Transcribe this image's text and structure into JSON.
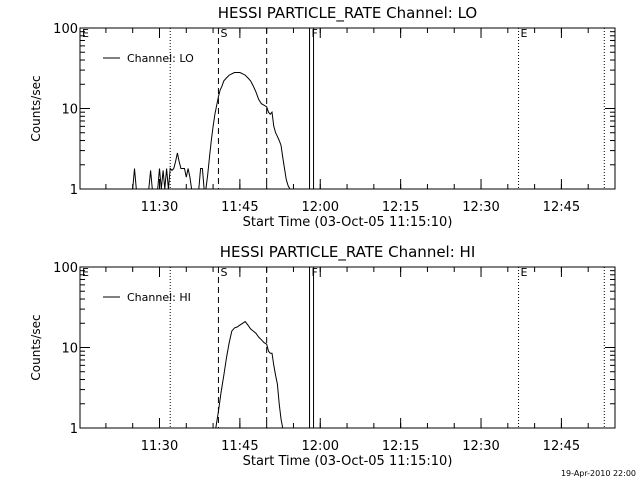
{
  "chart_data": [
    {
      "type": "line",
      "title": "HESSI PARTICLE_RATE Channel: LO",
      "xlabel": "Start Time (03-Oct-05 11:15:10)",
      "ylabel": "Counts/sec",
      "yscale": "log",
      "ylim": [
        1,
        100
      ],
      "y_ticks": [
        1,
        10,
        100
      ],
      "y_tick_labels": [
        "1",
        "10",
        "100"
      ],
      "xlim": [
        "11:15:10",
        "12:55:00"
      ],
      "x_ticks": [
        "11:30",
        "11:45",
        "12:00",
        "12:15",
        "12:30",
        "12:45"
      ],
      "legend": {
        "position": "top-left",
        "entries": [
          "Channel: LO"
        ]
      },
      "markers": [
        {
          "label": "E",
          "time": "11:15:10",
          "style": "dotted"
        },
        {
          "label": "",
          "time": "11:32",
          "style": "dotted"
        },
        {
          "label": "S",
          "time": "11:41",
          "style": "dashed"
        },
        {
          "label": "",
          "time": "11:50",
          "style": "dashed"
        },
        {
          "label": "F",
          "time": "11:58",
          "style": "solid"
        },
        {
          "label": "E",
          "time": "12:37",
          "style": "dotted"
        },
        {
          "label": "",
          "time": "12:53",
          "style": "dotted"
        }
      ],
      "series": [
        {
          "name": "Channel: LO",
          "x": [
            "11:25:00",
            "11:25:20",
            "11:25:40",
            "11:28:00",
            "11:28:20",
            "11:28:40",
            "11:29:40",
            "11:30:00",
            "11:30:20",
            "11:30:40",
            "11:31:00",
            "11:31:20",
            "11:31:40",
            "11:32:00",
            "11:32:20",
            "11:32:40",
            "11:33:00",
            "11:33:20",
            "11:33:40",
            "11:34:00",
            "11:34:20",
            "11:34:40",
            "11:35:00",
            "11:35:20",
            "11:35:40",
            "11:36:00",
            "11:36:20",
            "11:36:40",
            "11:37:00",
            "11:37:20",
            "11:37:40",
            "11:38:00",
            "11:38:20",
            "11:38:40",
            "11:39:00",
            "11:39:20",
            "11:39:40",
            "11:40:00",
            "11:40:20",
            "11:40:40",
            "11:41:00",
            "11:41:20",
            "11:41:40",
            "11:42:00",
            "11:42:30",
            "11:43:00",
            "11:43:30",
            "11:44:00",
            "11:44:30",
            "11:45:00",
            "11:45:30",
            "11:46:00",
            "11:46:30",
            "11:47:00",
            "11:47:30",
            "11:48:00",
            "11:48:30",
            "11:49:00",
            "11:49:30",
            "11:50:00",
            "11:50:20",
            "11:50:40",
            "11:51:00",
            "11:51:20",
            "11:51:40",
            "11:52:00",
            "11:52:20",
            "11:52:40",
            "11:53:00",
            "11:53:20",
            "11:53:40",
            "11:54:00",
            "11:54:20",
            "11:54:40"
          ],
          "values": [
            1,
            1.8,
            1,
            1,
            1.7,
            1,
            1,
            1.8,
            1,
            1.7,
            1,
            1.8,
            1,
            1.8,
            1.7,
            1.8,
            2.2,
            2.8,
            2.2,
            1.8,
            1.8,
            1.8,
            1.4,
            1.8,
            1.4,
            1,
            1,
            1,
            1,
            1,
            1.8,
            1.8,
            1,
            1,
            1.5,
            2.5,
            4,
            6,
            8.5,
            11,
            14,
            17,
            19,
            22,
            24,
            26,
            27,
            28,
            28,
            28,
            27,
            26,
            24,
            22,
            19,
            16,
            13,
            11.5,
            11,
            10.5,
            9,
            8.5,
            9,
            6,
            5,
            4.5,
            4,
            3.5,
            2.5,
            1.8,
            1.3,
            1.1,
            1,
            1
          ]
        }
      ]
    },
    {
      "type": "line",
      "title": "HESSI PARTICLE_RATE Channel: HI",
      "xlabel": "Start Time (03-Oct-05 11:15:10)",
      "ylabel": "Counts/sec",
      "yscale": "log",
      "ylim": [
        1,
        100
      ],
      "y_ticks": [
        1,
        10,
        100
      ],
      "y_tick_labels": [
        "1",
        "10",
        "100"
      ],
      "xlim": [
        "11:15:10",
        "12:55:00"
      ],
      "x_ticks": [
        "11:30",
        "11:45",
        "12:00",
        "12:15",
        "12:30",
        "12:45"
      ],
      "legend": {
        "position": "top-left",
        "entries": [
          "Channel: HI"
        ]
      },
      "markers": [
        {
          "label": "E",
          "time": "11:15:10",
          "style": "dotted"
        },
        {
          "label": "",
          "time": "11:32",
          "style": "dotted"
        },
        {
          "label": "S",
          "time": "11:41",
          "style": "dashed"
        },
        {
          "label": "",
          "time": "11:50",
          "style": "dashed"
        },
        {
          "label": "F",
          "time": "11:58",
          "style": "solid"
        },
        {
          "label": "E",
          "time": "12:37",
          "style": "dotted"
        },
        {
          "label": "",
          "time": "12:53",
          "style": "dotted"
        }
      ],
      "series": [
        {
          "name": "Channel: HI",
          "x": [
            "11:40:30",
            "11:41:00",
            "11:41:30",
            "11:42:00",
            "11:42:30",
            "11:43:00",
            "11:43:30",
            "11:44:00",
            "11:44:30",
            "11:45:00",
            "11:45:30",
            "11:46:00",
            "11:46:30",
            "11:47:00",
            "11:47:30",
            "11:48:00",
            "11:48:30",
            "11:49:00",
            "11:49:30",
            "11:50:00",
            "11:50:20",
            "11:50:40",
            "11:51:00",
            "11:51:20",
            "11:51:40",
            "11:52:00",
            "11:52:20",
            "11:52:40",
            "11:53:00"
          ],
          "values": [
            1,
            1.6,
            2.8,
            4.5,
            7.5,
            11.5,
            16,
            17.5,
            18,
            19,
            20,
            21,
            19,
            17,
            16,
            15,
            13.5,
            12.5,
            11.5,
            11,
            9,
            8.5,
            8.5,
            6,
            4.5,
            3.5,
            2,
            1.3,
            1
          ]
        }
      ]
    }
  ],
  "footer": {
    "timestamp": "19-Apr-2010 22:00"
  }
}
